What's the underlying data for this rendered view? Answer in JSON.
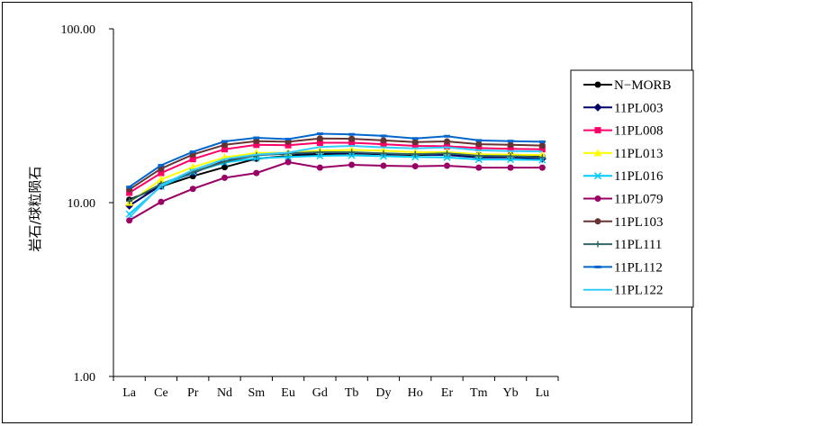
{
  "chart_data": {
    "type": "line",
    "title": "",
    "xlabel": "",
    "ylabel": "岩石/球粒陨石",
    "yscale": "log",
    "ylim": [
      1,
      100
    ],
    "yticks": [
      "1.00",
      "10.00",
      "100.00"
    ],
    "grid": false,
    "legend_position": "right",
    "categories": [
      "La",
      "Ce",
      "Pr",
      "Nd",
      "Sm",
      "Eu",
      "Gd",
      "Tb",
      "Dy",
      "Ho",
      "Er",
      "Tm",
      "Yb",
      "Lu"
    ],
    "series": [
      {
        "name": "N−MORB",
        "color": "#000000",
        "marker": "circle",
        "values": [
          10.4,
          12.4,
          14.2,
          16.0,
          17.9,
          18.6,
          19.0,
          19.2,
          19.0,
          18.8,
          18.9,
          18.8,
          18.8,
          18.4
        ]
      },
      {
        "name": "11PL003",
        "color": "#000066",
        "marker": "diamond",
        "values": [
          9.6,
          12.6,
          14.8,
          17.4,
          18.9,
          19.1,
          19.3,
          19.4,
          19.1,
          19.0,
          18.8,
          18.2,
          18.2,
          17.9
        ]
      },
      {
        "name": "11PL008",
        "color": "#ff0066",
        "marker": "square",
        "values": [
          11.4,
          14.8,
          17.8,
          20.3,
          21.5,
          21.4,
          22.1,
          22.1,
          21.7,
          21.2,
          21.1,
          20.6,
          20.4,
          20.3
        ]
      },
      {
        "name": "11PL013",
        "color": "#ffff00",
        "marker": "triangle",
        "values": [
          10.0,
          13.6,
          16.0,
          18.2,
          19.3,
          19.4,
          19.9,
          20.1,
          19.9,
          19.5,
          19.5,
          19.0,
          18.9,
          18.8
        ]
      },
      {
        "name": "11PL016",
        "color": "#00ccff",
        "marker": "x",
        "values": [
          8.6,
          12.4,
          15.0,
          17.0,
          18.0,
          18.3,
          18.6,
          18.7,
          18.5,
          18.3,
          18.2,
          17.7,
          17.7,
          17.6
        ]
      },
      {
        "name": "11PL079",
        "color": "#990066",
        "marker": "circle",
        "values": [
          7.9,
          10.1,
          12.0,
          13.9,
          14.8,
          17.1,
          15.9,
          16.5,
          16.3,
          16.2,
          16.3,
          15.9,
          15.9,
          15.9
        ]
      },
      {
        "name": "11PL103",
        "color": "#663333",
        "marker": "circle",
        "values": [
          11.9,
          15.7,
          18.9,
          21.5,
          22.6,
          22.4,
          23.4,
          23.3,
          22.8,
          22.3,
          22.5,
          21.7,
          21.5,
          21.3
        ]
      },
      {
        "name": "11PL111",
        "color": "#336666",
        "marker": "plus",
        "values": [
          10.2,
          12.8,
          15.0,
          17.2,
          18.7,
          19.2,
          19.5,
          19.5,
          19.2,
          19.0,
          19.2,
          18.6,
          18.5,
          18.2
        ]
      },
      {
        "name": "11PL112",
        "color": "#0066cc",
        "marker": "dash",
        "values": [
          12.3,
          16.4,
          19.6,
          22.5,
          23.6,
          23.2,
          24.9,
          24.7,
          24.2,
          23.4,
          24.1,
          22.8,
          22.6,
          22.4
        ]
      },
      {
        "name": "11PL122",
        "color": "#33ccff",
        "marker": "none",
        "values": [
          8.2,
          12.6,
          15.4,
          17.8,
          18.9,
          19.4,
          20.9,
          21.2,
          20.8,
          20.5,
          20.8,
          20.0,
          19.8,
          19.7
        ]
      }
    ]
  }
}
